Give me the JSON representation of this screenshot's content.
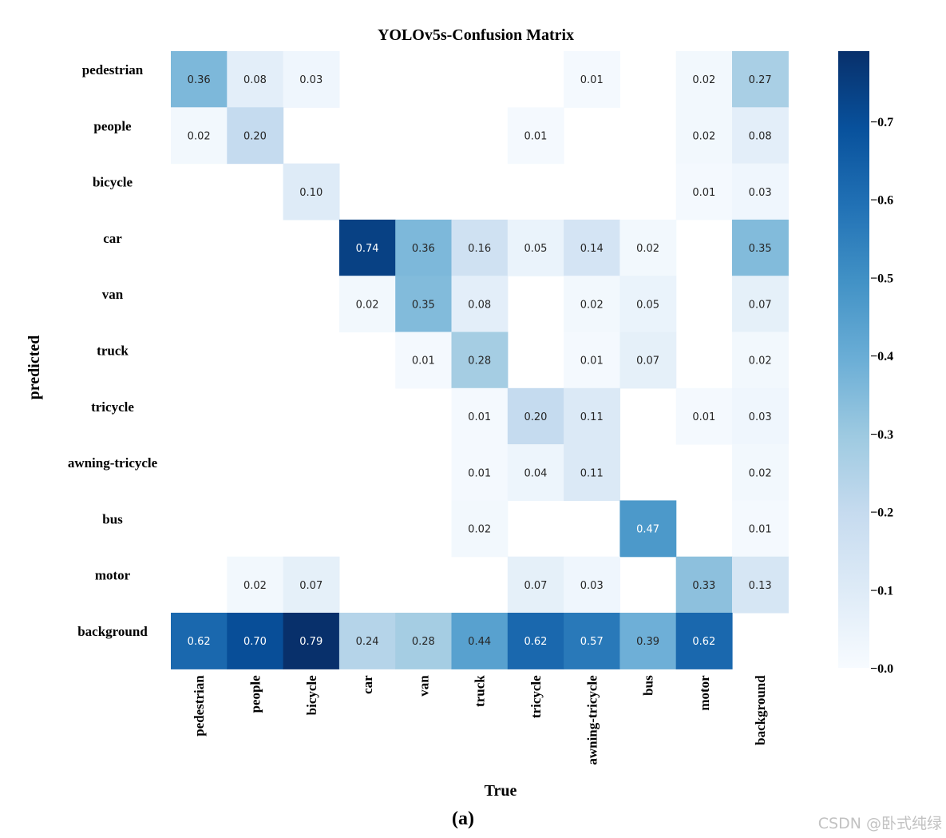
{
  "chart_data": {
    "type": "heatmap",
    "title": "YOLOv5s-Confusion Matrix",
    "xlabel": "True",
    "ylabel": "predicted",
    "x_categories": [
      "pedestrian",
      "people",
      "bicycle",
      "car",
      "van",
      "truck",
      "tricycle",
      "awning-tricycle",
      "bus",
      "motor",
      "background"
    ],
    "y_categories": [
      "pedestrian",
      "people",
      "bicycle",
      "car",
      "van",
      "truck",
      "tricycle",
      "awning-tricycle",
      "bus",
      "motor",
      "background"
    ],
    "values": [
      [
        0.36,
        0.08,
        0.03,
        null,
        null,
        null,
        null,
        0.01,
        null,
        0.02,
        0.27
      ],
      [
        0.02,
        0.2,
        null,
        null,
        null,
        null,
        0.01,
        null,
        null,
        0.02,
        0.08
      ],
      [
        null,
        null,
        0.1,
        null,
        null,
        null,
        null,
        null,
        null,
        0.01,
        0.03
      ],
      [
        null,
        null,
        null,
        0.74,
        0.36,
        0.16,
        0.05,
        0.14,
        0.02,
        null,
        0.35
      ],
      [
        null,
        null,
        null,
        0.02,
        0.35,
        0.08,
        null,
        0.02,
        0.05,
        null,
        0.07
      ],
      [
        null,
        null,
        null,
        null,
        0.01,
        0.28,
        null,
        0.01,
        0.07,
        null,
        0.02
      ],
      [
        null,
        null,
        null,
        null,
        null,
        0.01,
        0.2,
        0.11,
        null,
        0.01,
        0.03
      ],
      [
        null,
        null,
        null,
        null,
        null,
        0.01,
        0.04,
        0.11,
        null,
        null,
        0.02
      ],
      [
        null,
        null,
        null,
        null,
        null,
        0.02,
        null,
        null,
        0.47,
        null,
        0.01
      ],
      [
        null,
        0.02,
        0.07,
        null,
        null,
        null,
        0.07,
        0.03,
        null,
        0.33,
        0.13
      ],
      [
        0.62,
        0.7,
        0.79,
        0.24,
        0.28,
        0.44,
        0.62,
        0.57,
        0.39,
        0.62,
        null
      ]
    ],
    "colormap": "Blues",
    "vmin": 0.0,
    "vmax": 0.79,
    "colorbar_ticks": [
      0.0,
      0.1,
      0.2,
      0.3,
      0.4,
      0.5,
      0.6,
      0.7
    ],
    "colorbar_tick_labels": [
      "−0.0",
      "−0.1",
      "−0.2",
      "−0.3",
      "−0.4",
      "−0.5",
      "−0.6",
      "−0.7"
    ]
  },
  "caption": "(a)",
  "watermark": "CSDN @卧式纯绿"
}
